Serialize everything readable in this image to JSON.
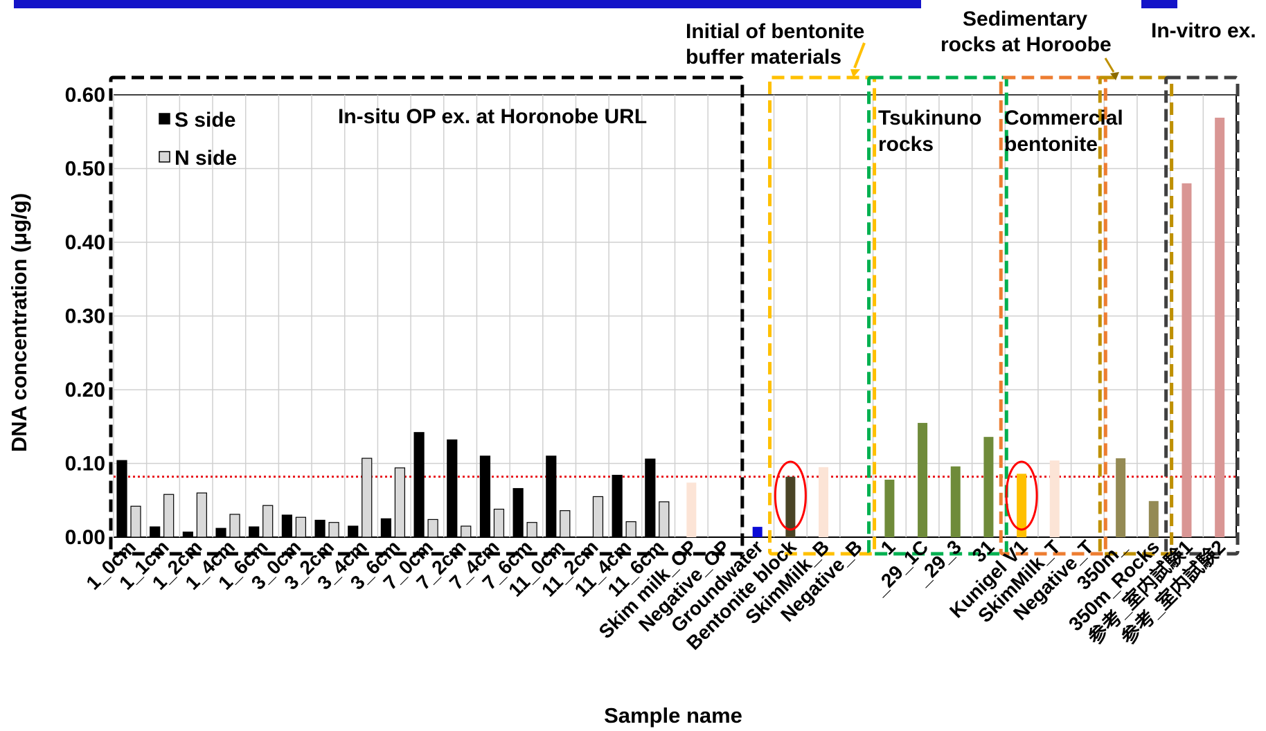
{
  "chart_data": {
    "type": "bar",
    "title": "",
    "xlabel": "Sample name",
    "ylabel": "DNA concentration (μg/g)",
    "ylim": [
      0,
      0.6
    ],
    "yticks": [
      "0.00",
      "0.10",
      "0.20",
      "0.30",
      "0.40",
      "0.50",
      "0.60"
    ],
    "threshold": 0.082,
    "threshold_color": "#e8141a",
    "legend": {
      "placement": "top-left",
      "entries": [
        {
          "name": "S side",
          "color": "#000000"
        },
        {
          "name": "N side",
          "color": "#d9d9d9"
        }
      ]
    },
    "categories": [
      {
        "label": "1_0cm",
        "bars": [
          {
            "series": "S side",
            "value": 0.104,
            "color": "#000000"
          },
          {
            "series": "N side",
            "value": 0.042,
            "color": "#d9d9d9"
          }
        ]
      },
      {
        "label": "1_1cm",
        "bars": [
          {
            "series": "S side",
            "value": 0.014,
            "color": "#000000"
          },
          {
            "series": "N side",
            "value": 0.058,
            "color": "#d9d9d9"
          }
        ]
      },
      {
        "label": "1_2cm",
        "bars": [
          {
            "series": "S side",
            "value": 0.007,
            "color": "#000000"
          },
          {
            "series": "N side",
            "value": 0.06,
            "color": "#d9d9d9"
          }
        ]
      },
      {
        "label": "1_4cm",
        "bars": [
          {
            "series": "S side",
            "value": 0.012,
            "color": "#000000"
          },
          {
            "series": "N side",
            "value": 0.031,
            "color": "#d9d9d9"
          }
        ]
      },
      {
        "label": "1_6cm",
        "bars": [
          {
            "series": "S side",
            "value": 0.014,
            "color": "#000000"
          },
          {
            "series": "N side",
            "value": 0.043,
            "color": "#d9d9d9"
          }
        ]
      },
      {
        "label": "3_0cm",
        "bars": [
          {
            "series": "S side",
            "value": 0.03,
            "color": "#000000"
          },
          {
            "series": "N side",
            "value": 0.027,
            "color": "#d9d9d9"
          }
        ]
      },
      {
        "label": "3_2cm",
        "bars": [
          {
            "series": "S side",
            "value": 0.023,
            "color": "#000000"
          },
          {
            "series": "N side",
            "value": 0.02,
            "color": "#d9d9d9"
          }
        ]
      },
      {
        "label": "3_4cm",
        "bars": [
          {
            "series": "S side",
            "value": 0.015,
            "color": "#000000"
          },
          {
            "series": "N side",
            "value": 0.107,
            "color": "#d9d9d9"
          }
        ]
      },
      {
        "label": "3_6cm",
        "bars": [
          {
            "series": "S side",
            "value": 0.025,
            "color": "#000000"
          },
          {
            "series": "N side",
            "value": 0.094,
            "color": "#d9d9d9"
          }
        ]
      },
      {
        "label": "7_0cm",
        "bars": [
          {
            "series": "S side",
            "value": 0.142,
            "color": "#000000"
          },
          {
            "series": "N side",
            "value": 0.024,
            "color": "#d9d9d9"
          }
        ]
      },
      {
        "label": "7_2cm",
        "bars": [
          {
            "series": "S side",
            "value": 0.132,
            "color": "#000000"
          },
          {
            "series": "N side",
            "value": 0.015,
            "color": "#d9d9d9"
          }
        ]
      },
      {
        "label": "7_4cm",
        "bars": [
          {
            "series": "S side",
            "value": 0.11,
            "color": "#000000"
          },
          {
            "series": "N side",
            "value": 0.038,
            "color": "#d9d9d9"
          }
        ]
      },
      {
        "label": "7_6cm",
        "bars": [
          {
            "series": "S side",
            "value": 0.066,
            "color": "#000000"
          },
          {
            "series": "N side",
            "value": 0.02,
            "color": "#d9d9d9"
          }
        ]
      },
      {
        "label": "11_0cm",
        "bars": [
          {
            "series": "S side",
            "value": 0.11,
            "color": "#000000"
          },
          {
            "series": "N side",
            "value": 0.036,
            "color": "#d9d9d9"
          }
        ]
      },
      {
        "label": "11_2cm",
        "bars": [
          {
            "series": "S side",
            "value": 0.0,
            "color": "#000000"
          },
          {
            "series": "N side",
            "value": 0.055,
            "color": "#d9d9d9"
          }
        ]
      },
      {
        "label": "11_4cm",
        "bars": [
          {
            "series": "S side",
            "value": 0.084,
            "color": "#000000"
          },
          {
            "series": "N side",
            "value": 0.021,
            "color": "#d9d9d9"
          }
        ]
      },
      {
        "label": "11_6cm",
        "bars": [
          {
            "series": "S side",
            "value": 0.106,
            "color": "#000000"
          },
          {
            "series": "N side",
            "value": 0.048,
            "color": "#d9d9d9"
          }
        ]
      },
      {
        "label": "Skim milk_OP",
        "bars": [
          {
            "value": 0.074,
            "color": "#fce4d6"
          }
        ]
      },
      {
        "label": "Negative_OP",
        "bars": [
          {
            "value": 0.0,
            "color": "#fce4d6"
          }
        ]
      },
      {
        "label": "Groundwater",
        "bars": [
          {
            "value": 0.014,
            "color": "#0b0bd6"
          }
        ]
      },
      {
        "label": "Bentonite block",
        "bars": [
          {
            "value": 0.082,
            "color": "#4a4426"
          }
        ]
      },
      {
        "label": "SkimMilk_B",
        "bars": [
          {
            "value": 0.095,
            "color": "#fce4d6"
          }
        ]
      },
      {
        "label": "Negative_B",
        "bars": [
          {
            "value": 0.0,
            "color": "#fce4d6"
          }
        ]
      },
      {
        "label": "1",
        "bars": [
          {
            "value": 0.078,
            "color": "#6f8b3a"
          }
        ]
      },
      {
        "label": "_29_1C",
        "bars": [
          {
            "value": 0.155,
            "color": "#6f8b3a"
          }
        ]
      },
      {
        "label": "_29_3",
        "bars": [
          {
            "value": 0.096,
            "color": "#6f8b3a"
          }
        ]
      },
      {
        "label": "31",
        "bars": [
          {
            "value": 0.136,
            "color": "#6f8b3a"
          }
        ]
      },
      {
        "label": "Kunigel V1",
        "bars": [
          {
            "value": 0.086,
            "color": "#ffc000"
          }
        ]
      },
      {
        "label": "SkimMilk_T",
        "bars": [
          {
            "value": 0.104,
            "color": "#fce4d6"
          }
        ]
      },
      {
        "label": "Negative_T",
        "bars": [
          {
            "value": 0.0,
            "color": "#fce4d6"
          }
        ]
      },
      {
        "label": "350m_",
        "bars": [
          {
            "value": 0.107,
            "color": "#948a54"
          }
        ]
      },
      {
        "label": "350m_Rocks",
        "bars": [
          {
            "value": 0.049,
            "color": "#948a54"
          }
        ]
      },
      {
        "label": "参考_室内試験1",
        "bars": [
          {
            "value": 0.48,
            "color": "#d99694"
          }
        ]
      },
      {
        "label": "参考_室内試験2",
        "bars": [
          {
            "value": 0.569,
            "color": "#d99694"
          }
        ]
      }
    ],
    "group_boxes": [
      {
        "name": "in-situ",
        "from": 0,
        "to": 18,
        "color": "#000000"
      },
      {
        "name": "initial-bentonite",
        "from": 20,
        "to": 22,
        "color": "#ffc000"
      },
      {
        "name": "tsukinuno",
        "from": 23,
        "to": 26,
        "color": "#00b050"
      },
      {
        "name": "commercial-bentonite",
        "from": 27,
        "to": 29,
        "color": "#ed7d31"
      },
      {
        "name": "sedimentary",
        "from": 30,
        "to": 31,
        "color": "#bf9000"
      },
      {
        "name": "in-vitro",
        "from": 32,
        "to": 33,
        "color": "#404040"
      }
    ],
    "highlight_ellipses": [
      20,
      27
    ],
    "highlight_color": "#ff0000",
    "annotations": {
      "in_situ": "In-situ OP ex. at Horonobe URL",
      "initial_line1": "Initial of bentonite",
      "initial_line2": "buffer materials",
      "sedimentary_line1": "Sedimentary",
      "sedimentary_line2": "rocks at Horoobe",
      "in_vitro": "In-vitro ex.",
      "tsukinuno_line1": "Tsukinuno",
      "tsukinuno_line2": "rocks",
      "commercial_line1": "Commercial",
      "commercial_line2": "bentonite"
    },
    "grid": true,
    "header_bar_color": "#1414c8"
  }
}
